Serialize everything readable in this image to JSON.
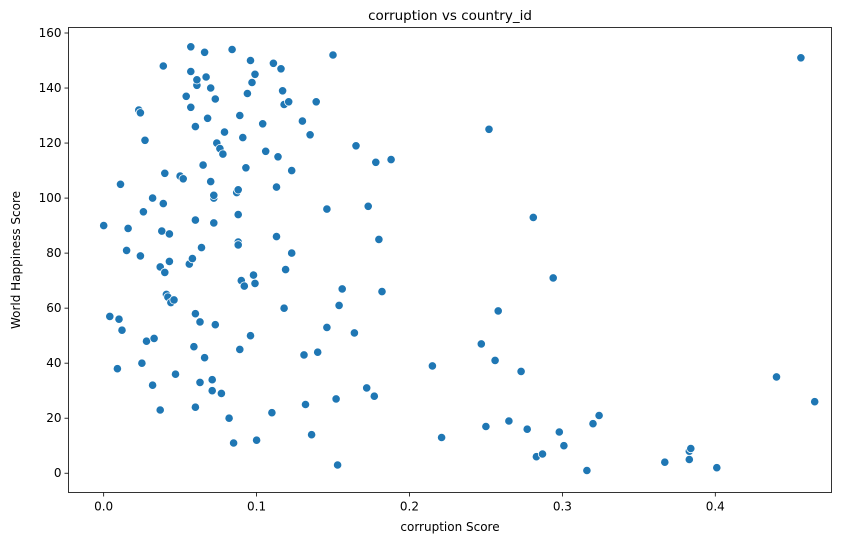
{
  "chart_data": {
    "type": "scatter",
    "title": "corruption vs country_id",
    "xlabel": "corruption Score",
    "ylabel": "World Happiness Score",
    "xlim": [
      -0.023,
      0.476
    ],
    "ylim": [
      -7,
      162
    ],
    "xticks": [
      0.0,
      0.1,
      0.2,
      0.3,
      0.4
    ],
    "xtick_labels": [
      "0.0",
      "0.1",
      "0.2",
      "0.3",
      "0.4"
    ],
    "yticks": [
      0,
      20,
      40,
      60,
      80,
      100,
      120,
      140,
      160
    ],
    "ytick_labels": [
      "0",
      "20",
      "40",
      "60",
      "80",
      "100",
      "120",
      "140",
      "160"
    ],
    "grid": false,
    "legend": false,
    "marker_color": "#1f77b4",
    "marker_edge_color": "#ffffff",
    "points": [
      [
        0.0,
        90
      ],
      [
        0.004,
        57
      ],
      [
        0.01,
        56
      ],
      [
        0.009,
        38
      ],
      [
        0.011,
        105
      ],
      [
        0.012,
        52
      ],
      [
        0.015,
        81
      ],
      [
        0.016,
        89
      ],
      [
        0.023,
        132
      ],
      [
        0.024,
        131
      ],
      [
        0.024,
        79
      ],
      [
        0.025,
        40
      ],
      [
        0.026,
        95
      ],
      [
        0.027,
        121
      ],
      [
        0.028,
        48
      ],
      [
        0.032,
        100
      ],
      [
        0.032,
        32
      ],
      [
        0.033,
        49
      ],
      [
        0.037,
        75
      ],
      [
        0.037,
        23
      ],
      [
        0.038,
        88
      ],
      [
        0.039,
        148
      ],
      [
        0.039,
        98
      ],
      [
        0.04,
        109
      ],
      [
        0.04,
        73
      ],
      [
        0.041,
        65
      ],
      [
        0.042,
        64
      ],
      [
        0.043,
        87
      ],
      [
        0.043,
        77
      ],
      [
        0.044,
        62
      ],
      [
        0.046,
        63
      ],
      [
        0.047,
        36
      ],
      [
        0.05,
        108
      ],
      [
        0.052,
        107
      ],
      [
        0.054,
        137
      ],
      [
        0.056,
        76
      ],
      [
        0.057,
        155
      ],
      [
        0.057,
        146
      ],
      [
        0.057,
        133
      ],
      [
        0.058,
        78
      ],
      [
        0.059,
        46
      ],
      [
        0.06,
        126
      ],
      [
        0.06,
        92
      ],
      [
        0.06,
        58
      ],
      [
        0.06,
        24
      ],
      [
        0.061,
        141
      ],
      [
        0.061,
        143
      ],
      [
        0.063,
        55
      ],
      [
        0.063,
        33
      ],
      [
        0.064,
        82
      ],
      [
        0.065,
        112
      ],
      [
        0.066,
        153
      ],
      [
        0.066,
        42
      ],
      [
        0.067,
        144
      ],
      [
        0.068,
        129
      ],
      [
        0.07,
        140
      ],
      [
        0.07,
        106
      ],
      [
        0.071,
        34
      ],
      [
        0.071,
        30
      ],
      [
        0.072,
        100
      ],
      [
        0.072,
        101
      ],
      [
        0.072,
        91
      ],
      [
        0.073,
        136
      ],
      [
        0.073,
        54
      ],
      [
        0.074,
        120
      ],
      [
        0.076,
        118
      ],
      [
        0.077,
        29
      ],
      [
        0.078,
        116
      ],
      [
        0.079,
        124
      ],
      [
        0.082,
        20
      ],
      [
        0.084,
        154
      ],
      [
        0.085,
        11
      ],
      [
        0.087,
        102
      ],
      [
        0.088,
        103
      ],
      [
        0.088,
        94
      ],
      [
        0.088,
        84
      ],
      [
        0.088,
        83
      ],
      [
        0.089,
        45
      ],
      [
        0.089,
        130
      ],
      [
        0.09,
        70
      ],
      [
        0.091,
        122
      ],
      [
        0.092,
        68
      ],
      [
        0.093,
        111
      ],
      [
        0.094,
        138
      ],
      [
        0.096,
        150
      ],
      [
        0.096,
        50
      ],
      [
        0.097,
        142
      ],
      [
        0.098,
        72
      ],
      [
        0.099,
        145
      ],
      [
        0.099,
        69
      ],
      [
        0.1,
        12
      ],
      [
        0.104,
        127
      ],
      [
        0.106,
        117
      ],
      [
        0.11,
        22
      ],
      [
        0.111,
        149
      ],
      [
        0.113,
        104
      ],
      [
        0.113,
        86
      ],
      [
        0.114,
        115
      ],
      [
        0.116,
        147
      ],
      [
        0.117,
        139
      ],
      [
        0.118,
        60
      ],
      [
        0.118,
        134
      ],
      [
        0.119,
        74
      ],
      [
        0.121,
        135
      ],
      [
        0.123,
        110
      ],
      [
        0.123,
        80
      ],
      [
        0.13,
        128
      ],
      [
        0.131,
        43
      ],
      [
        0.132,
        25
      ],
      [
        0.135,
        123
      ],
      [
        0.136,
        14
      ],
      [
        0.139,
        135
      ],
      [
        0.14,
        44
      ],
      [
        0.146,
        96
      ],
      [
        0.146,
        53
      ],
      [
        0.15,
        152
      ],
      [
        0.152,
        27
      ],
      [
        0.153,
        3
      ],
      [
        0.154,
        61
      ],
      [
        0.156,
        67
      ],
      [
        0.164,
        51
      ],
      [
        0.165,
        119
      ],
      [
        0.172,
        31
      ],
      [
        0.173,
        97
      ],
      [
        0.177,
        28
      ],
      [
        0.178,
        113
      ],
      [
        0.18,
        85
      ],
      [
        0.182,
        66
      ],
      [
        0.188,
        114
      ],
      [
        0.215,
        39
      ],
      [
        0.221,
        13
      ],
      [
        0.247,
        47
      ],
      [
        0.25,
        17
      ],
      [
        0.252,
        125
      ],
      [
        0.256,
        41
      ],
      [
        0.258,
        59
      ],
      [
        0.265,
        19
      ],
      [
        0.273,
        37
      ],
      [
        0.277,
        16
      ],
      [
        0.281,
        93
      ],
      [
        0.283,
        6
      ],
      [
        0.287,
        7
      ],
      [
        0.294,
        71
      ],
      [
        0.298,
        15
      ],
      [
        0.301,
        10
      ],
      [
        0.316,
        1
      ],
      [
        0.32,
        18
      ],
      [
        0.324,
        21
      ],
      [
        0.367,
        4
      ],
      [
        0.383,
        8
      ],
      [
        0.383,
        5
      ],
      [
        0.384,
        9
      ],
      [
        0.401,
        2
      ],
      [
        0.44,
        35
      ],
      [
        0.456,
        151
      ],
      [
        0.465,
        26
      ]
    ]
  }
}
